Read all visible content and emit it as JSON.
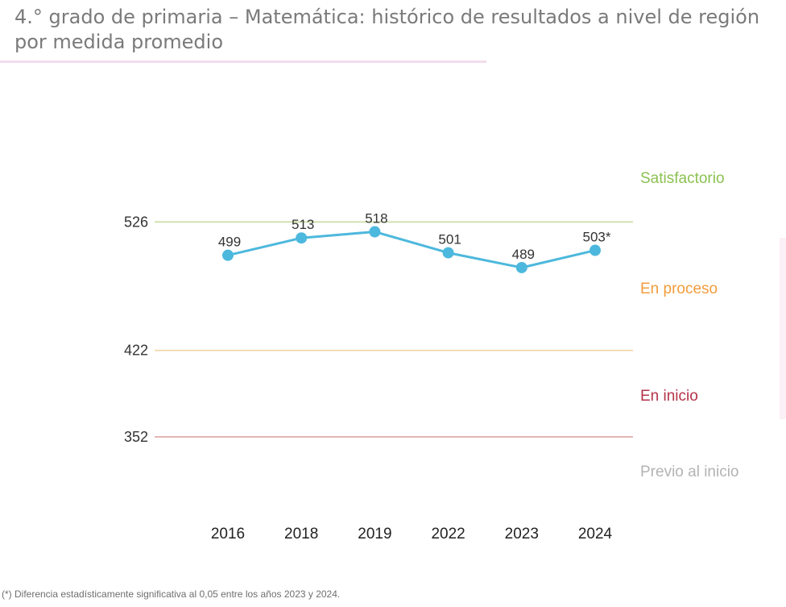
{
  "page": {
    "title": "4.° grado de primaria – Matemática: histórico de resultados a nivel de región por medida promedio",
    "footnote": "(*) Diferencia estadísticamente significativa al 0,05 entre los años 2023 y 2024."
  },
  "chart_data": {
    "type": "line",
    "title": "",
    "xlabel": "",
    "ylabel": "",
    "categories": [
      "2016",
      "2018",
      "2019",
      "2022",
      "2023",
      "2024"
    ],
    "series": [
      {
        "values": [
          499,
          513,
          518,
          501,
          489,
          503
        ],
        "labels": [
          "499",
          "513",
          "518",
          "501",
          "489",
          "503*"
        ],
        "color": "#4db8dd"
      }
    ],
    "ylim": [
      290,
      626
    ],
    "reference_lines": [
      {
        "value": 526,
        "label": "526",
        "color": "#c9dca0"
      },
      {
        "value": 422,
        "label": "422",
        "color": "#f3d4a4"
      },
      {
        "value": 352,
        "label": "352",
        "color": "#dda6a6"
      }
    ],
    "levels": [
      {
        "label": "Satisfactorio",
        "color": "#8cc152"
      },
      {
        "label": "En proceso",
        "color": "#f39c3c"
      },
      {
        "label": "En inicio",
        "color": "#b5334a"
      },
      {
        "label": "Previo al inicio",
        "color": "#b3b3b3"
      }
    ],
    "grid": false
  }
}
